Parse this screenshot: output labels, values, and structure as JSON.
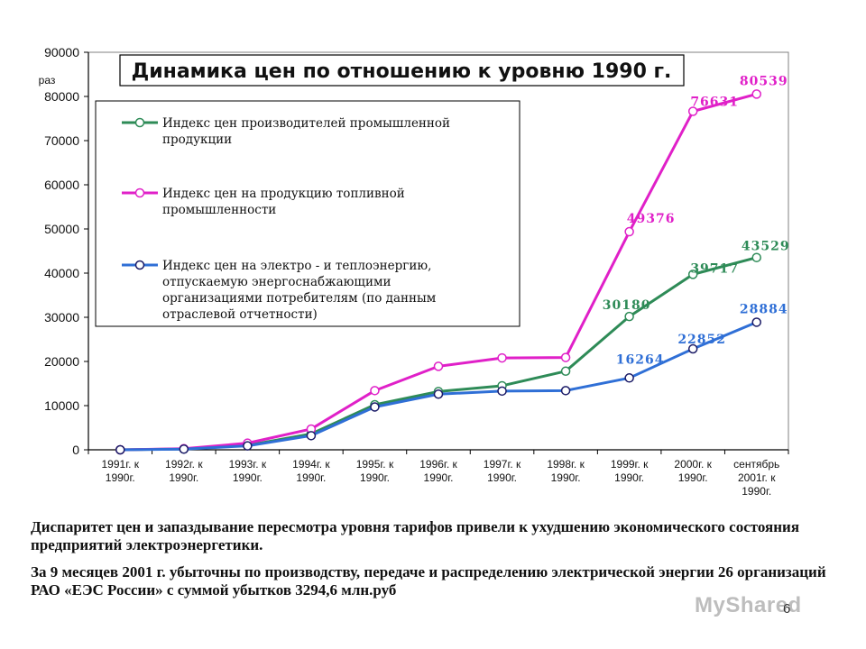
{
  "chart_data": {
    "type": "line",
    "title": "Динамика цен по отношению к уровню 1990 г.",
    "ylabel": "раз",
    "xlabel": "",
    "ylim": [
      0,
      90000
    ],
    "yticks": [
      0,
      10000,
      20000,
      30000,
      40000,
      50000,
      60000,
      70000,
      80000,
      90000
    ],
    "categories": [
      [
        "1991г. к",
        "1990г."
      ],
      [
        "1992г. к",
        "1990г."
      ],
      [
        "1993г. к",
        "1990г."
      ],
      [
        "1994г. к",
        "1990г."
      ],
      [
        "1995г. к",
        "1990г."
      ],
      [
        "1996г. к",
        "1990г."
      ],
      [
        "1997г. к",
        "1990г."
      ],
      [
        "1998г. к",
        "1990г."
      ],
      [
        "1999г. к",
        "1990г."
      ],
      [
        "2000г. к",
        "1990г."
      ],
      [
        "сентябрь",
        "2001г. к",
        "1990г."
      ]
    ],
    "grid": false,
    "legend_position": "top-left",
    "series": [
      {
        "name": "Индекс цен производителей промышленной продукции",
        "legend_lines": [
          "Индекс цен производителей промышленной",
          "продукции"
        ],
        "color": "#2e8b57",
        "values": [
          0,
          200,
          1000,
          3600,
          10200,
          13200,
          14500,
          17800,
          30180,
          39717,
          43529
        ],
        "labels": {
          "8": "30180",
          "9": "39717",
          "10": "43529"
        }
      },
      {
        "name": "Индекс цен на продукцию топливной промышленности",
        "legend_lines": [
          "Индекс цен на продукцию топливной",
          "промышленности"
        ],
        "color": "#e020c8",
        "values": [
          0,
          250,
          1500,
          4700,
          13400,
          18900,
          20800,
          20900,
          49376,
          76631,
          80539
        ],
        "labels": {
          "8": "49376",
          "9": "76631",
          "10": "80539"
        }
      },
      {
        "name": "Индекс цен на электро - и теплоэнергию, отпускаемую энергоснабжающими организациями потребителям (по данным отраслевой отчетности)",
        "legend_lines": [
          "Индекс цен на электро - и теплоэнергию,",
          "отпускаемую энергоснабжающими",
          "организациями потребителям (по данным",
          "отраслевой отчетности)"
        ],
        "color": "#2f6fd6",
        "values": [
          0,
          150,
          900,
          3200,
          9700,
          12600,
          13300,
          13400,
          16264,
          22852,
          28884
        ],
        "labels": {
          "8": "16264",
          "9": "22852",
          "10": "28884"
        }
      }
    ]
  },
  "text": {
    "paragraph1": "Диспаритет цен и запаздывание пересмотра уровня тарифов привели к ухудшению экономического состояния предприятий электроэнергетики.",
    "paragraph2": "За 9 месяцев 2001 г. убыточны по производству, передаче и распределению электрической энергии 26 организаций РАО «ЕЭС России» с суммой убытков 3294,6 млн.руб",
    "page_number": "6",
    "watermark": "MyShared"
  }
}
